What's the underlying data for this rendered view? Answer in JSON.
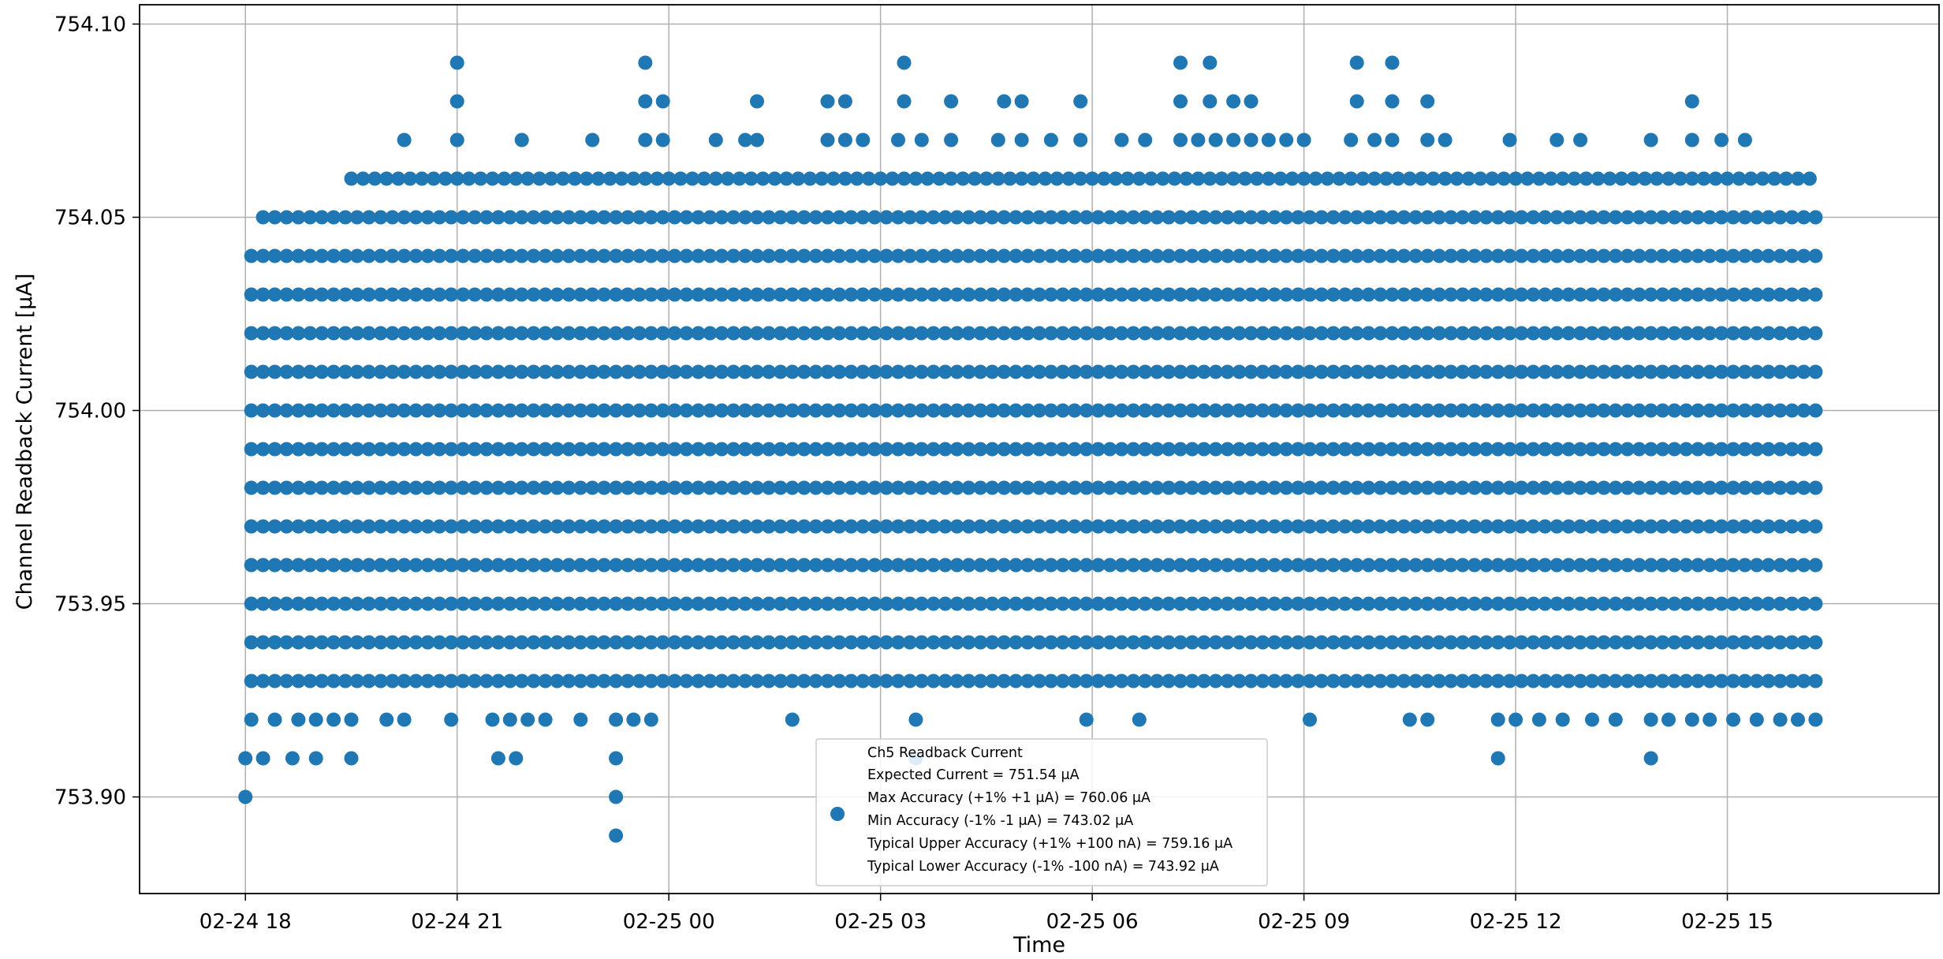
{
  "chart_data": {
    "type": "scatter",
    "xlabel": "Time",
    "ylabel": "Channel Readback Current [μA]",
    "x_range": [
      "2023-02-24T16:30",
      "2023-02-25T18:00"
    ],
    "ylim": [
      753.875,
      754.105
    ],
    "grid": true,
    "legend_position": "lower-center",
    "x_ticks": [
      {
        "time": "2023-02-24T18:00",
        "label": "02-24 18"
      },
      {
        "time": "2023-02-24T21:00",
        "label": "02-24 21"
      },
      {
        "time": "2023-02-25T00:00",
        "label": "02-25 00"
      },
      {
        "time": "2023-02-25T03:00",
        "label": "02-25 03"
      },
      {
        "time": "2023-02-25T06:00",
        "label": "02-25 06"
      },
      {
        "time": "2023-02-25T09:00",
        "label": "02-25 09"
      },
      {
        "time": "2023-02-25T12:00",
        "label": "02-25 12"
      },
      {
        "time": "2023-02-25T15:00",
        "label": "02-25 15"
      }
    ],
    "y_ticks": [
      {
        "value": 753.9,
        "label": "753.90"
      },
      {
        "value": 753.95,
        "label": "753.95"
      },
      {
        "value": 754.0,
        "label": "754.00"
      },
      {
        "value": 754.05,
        "label": "754.05"
      },
      {
        "value": 754.1,
        "label": "754.10"
      }
    ],
    "series": [
      {
        "name": "Ch5 Readback Current",
        "color": "#1f77b4",
        "time_range": [
          "2023-02-24T18:00",
          "2023-02-25T16:15"
        ],
        "rows": [
          {
            "y": 754.09,
            "times": [
              "2023-02-24T21:00",
              "2023-02-24T23:40",
              "2023-02-25T03:20",
              "2023-02-25T07:15",
              "2023-02-25T07:40",
              "2023-02-25T09:45",
              "2023-02-25T10:15"
            ]
          },
          {
            "y": 754.08,
            "times": [
              "2023-02-24T21:00",
              "2023-02-24T23:40",
              "2023-02-24T23:55",
              "2023-02-25T01:15",
              "2023-02-25T02:15",
              "2023-02-25T02:30",
              "2023-02-25T03:20",
              "2023-02-25T04:00",
              "2023-02-25T04:45",
              "2023-02-25T05:00",
              "2023-02-25T05:50",
              "2023-02-25T07:15",
              "2023-02-25T07:40",
              "2023-02-25T08:00",
              "2023-02-25T08:15",
              "2023-02-25T09:45",
              "2023-02-25T10:15",
              "2023-02-25T10:45",
              "2023-02-25T14:30"
            ]
          },
          {
            "y": 754.07,
            "times": [
              "2023-02-24T20:15",
              "2023-02-24T21:00",
              "2023-02-24T21:55",
              "2023-02-24T22:55",
              "2023-02-24T23:40",
              "2023-02-24T23:55",
              "2023-02-25T00:40",
              "2023-02-25T01:05",
              "2023-02-25T01:15",
              "2023-02-25T02:15",
              "2023-02-25T02:30",
              "2023-02-25T02:45",
              "2023-02-25T03:15",
              "2023-02-25T03:35",
              "2023-02-25T04:00",
              "2023-02-25T04:40",
              "2023-02-25T05:00",
              "2023-02-25T05:25",
              "2023-02-25T05:50",
              "2023-02-25T06:25",
              "2023-02-25T06:45",
              "2023-02-25T07:15",
              "2023-02-25T07:30",
              "2023-02-25T07:45",
              "2023-02-25T08:00",
              "2023-02-25T08:15",
              "2023-02-25T08:30",
              "2023-02-25T08:45",
              "2023-02-25T09:00",
              "2023-02-25T09:40",
              "2023-02-25T10:00",
              "2023-02-25T10:15",
              "2023-02-25T10:45",
              "2023-02-25T11:00",
              "2023-02-25T11:55",
              "2023-02-25T12:35",
              "2023-02-25T12:55",
              "2023-02-25T13:55",
              "2023-02-25T14:30",
              "2023-02-25T14:55",
              "2023-02-25T15:15"
            ]
          }
        ],
        "dense_rows": [
          {
            "y": 754.06,
            "from": "2023-02-24T19:30",
            "to": "2023-02-25T16:15"
          },
          {
            "y": 754.05,
            "from": "2023-02-24T18:15",
            "to": "2023-02-25T16:15"
          },
          {
            "y": 754.04,
            "from": "2023-02-24T18:05",
            "to": "2023-02-25T16:15"
          },
          {
            "y": 754.03,
            "from": "2023-02-24T18:05",
            "to": "2023-02-25T16:15"
          },
          {
            "y": 754.02,
            "from": "2023-02-24T18:05",
            "to": "2023-02-25T16:15"
          },
          {
            "y": 754.01,
            "from": "2023-02-24T18:05",
            "to": "2023-02-25T16:15"
          },
          {
            "y": 754.0,
            "from": "2023-02-24T18:05",
            "to": "2023-02-25T16:15"
          },
          {
            "y": 753.99,
            "from": "2023-02-24T18:05",
            "to": "2023-02-25T16:15"
          },
          {
            "y": 753.98,
            "from": "2023-02-24T18:05",
            "to": "2023-02-25T16:15"
          },
          {
            "y": 753.97,
            "from": "2023-02-24T18:05",
            "to": "2023-02-25T16:15"
          },
          {
            "y": 753.96,
            "from": "2023-02-24T18:05",
            "to": "2023-02-25T16:15"
          },
          {
            "y": 753.95,
            "from": "2023-02-24T18:05",
            "to": "2023-02-25T16:15"
          },
          {
            "y": 753.94,
            "from": "2023-02-24T18:05",
            "to": "2023-02-25T16:15"
          },
          {
            "y": 753.93,
            "from": "2023-02-24T18:05",
            "to": "2023-02-25T16:15"
          }
        ],
        "sparse_rows": [
          {
            "y": 753.92,
            "times": [
              "2023-02-24T18:05",
              "2023-02-24T18:25",
              "2023-02-24T18:45",
              "2023-02-24T19:00",
              "2023-02-24T19:15",
              "2023-02-24T19:30",
              "2023-02-24T20:00",
              "2023-02-24T20:15",
              "2023-02-24T20:55",
              "2023-02-24T21:30",
              "2023-02-24T21:45",
              "2023-02-24T22:00",
              "2023-02-24T22:15",
              "2023-02-24T22:45",
              "2023-02-24T23:15",
              "2023-02-24T23:30",
              "2023-02-24T23:45",
              "2023-02-25T01:45",
              "2023-02-25T03:30",
              "2023-02-25T05:55",
              "2023-02-25T06:40",
              "2023-02-25T09:05",
              "2023-02-25T10:30",
              "2023-02-25T10:45",
              "2023-02-25T11:45",
              "2023-02-25T12:00",
              "2023-02-25T12:20",
              "2023-02-25T12:40",
              "2023-02-25T13:05",
              "2023-02-25T13:25",
              "2023-02-25T13:55",
              "2023-02-25T14:10",
              "2023-02-25T14:30",
              "2023-02-25T14:45",
              "2023-02-25T15:05",
              "2023-02-25T15:25",
              "2023-02-25T15:45",
              "2023-02-25T16:00",
              "2023-02-25T16:15"
            ]
          },
          {
            "y": 753.91,
            "times": [
              "2023-02-24T18:00",
              "2023-02-24T18:15",
              "2023-02-24T18:40",
              "2023-02-24T19:00",
              "2023-02-24T19:30",
              "2023-02-24T21:35",
              "2023-02-24T21:50",
              "2023-02-24T23:15",
              "2023-02-25T03:30",
              "2023-02-25T11:45",
              "2023-02-25T13:55"
            ]
          },
          {
            "y": 753.9,
            "times": [
              "2023-02-24T18:00",
              "2023-02-24T23:15"
            ]
          },
          {
            "y": 753.89,
            "times": [
              "2023-02-24T23:15"
            ]
          }
        ]
      }
    ],
    "legend": {
      "entries": [
        "Ch5 Readback Current",
        "Expected Current = 751.54 μA",
        "Max Accuracy (+1% +1 μA) = 760.06 μA",
        "Min Accuracy (-1% -1 μA) = 743.02 μA",
        "Typical Upper Accuracy (+1% +100 nA) = 759.16 μA",
        "Typical Lower Accuracy (-1% -100 nA) = 743.92 μA"
      ]
    }
  }
}
